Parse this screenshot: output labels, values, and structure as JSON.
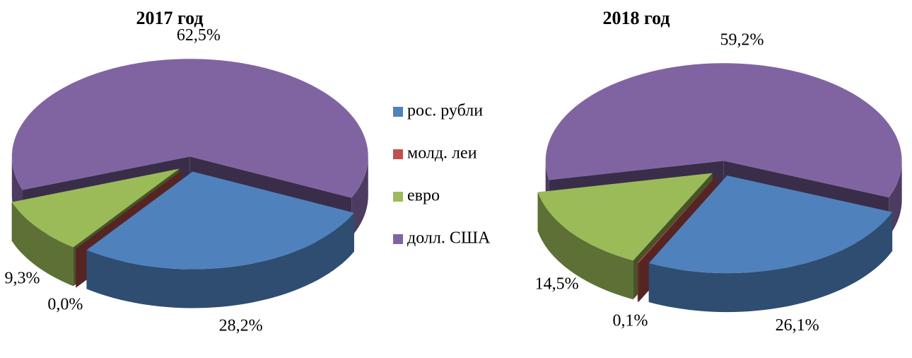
{
  "chart_data": [
    {
      "type": "pie",
      "title": "2017 год",
      "categories": [
        "рос. рубли",
        "молд. леи",
        "евро",
        "долл. США"
      ],
      "colors": [
        "#4f81bd",
        "#c0504d",
        "#9bbb59",
        "#8064a2"
      ],
      "values": [
        28.2,
        0.0,
        9.3,
        62.5
      ],
      "value_labels": [
        "28,2%",
        "0,0%",
        "9,3%",
        "62,5%"
      ]
    },
    {
      "type": "pie",
      "title": "2018 год",
      "values": [
        26.1,
        0.1,
        14.5,
        59.2
      ],
      "value_labels": [
        "26,1%",
        "0,1%",
        "14,5%",
        "59,2%"
      ]
    }
  ]
}
